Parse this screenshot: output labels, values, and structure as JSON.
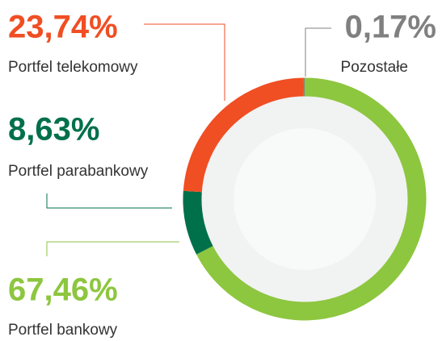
{
  "chart_data": {
    "type": "donut",
    "categories": [
      "Portfel bankowy",
      "Portfel parabankowy",
      "Portfel telekomowy",
      "Pozostałe"
    ],
    "values": [
      67.46,
      8.63,
      23.74,
      0.17
    ],
    "value_labels": [
      "67,46%",
      "8,63%",
      "23,74%",
      "0,17%"
    ],
    "colors": [
      "#8dc63f",
      "#00704a",
      "#f04e23",
      "#808080"
    ]
  }
}
